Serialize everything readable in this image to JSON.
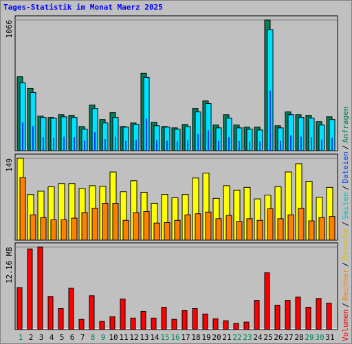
{
  "title": "Tages-Statistik im Monat Maerz 2025",
  "legend_separator": "/",
  "chart_data": [
    {
      "type": "bar",
      "categories": [
        "1",
        "2",
        "3",
        "4",
        "5",
        "6",
        "7",
        "8",
        "9",
        "10",
        "11",
        "12",
        "13",
        "14",
        "15",
        "16",
        "17",
        "18",
        "19",
        "20",
        "21",
        "22",
        "23",
        "24",
        "25",
        "26",
        "27",
        "28",
        "29",
        "30",
        "31"
      ],
      "ylim": [
        0,
        1066
      ],
      "yticks": [
        1066
      ],
      "series": [
        {
          "name": "Anfragen",
          "color": "#00805c",
          "values": [
            603,
            508,
            282,
            271,
            293,
            288,
            197,
            372,
            254,
            310,
            197,
            226,
            632,
            231,
            197,
            186,
            214,
            344,
            406,
            209,
            293,
            209,
            192,
            192,
            1066,
            203,
            316,
            293,
            288,
            237,
            276
          ]
        },
        {
          "name": "Seiten",
          "color": "#00e0ff",
          "values": [
            553,
            474,
            271,
            265,
            276,
            271,
            175,
            344,
            226,
            271,
            192,
            214,
            598,
            203,
            192,
            175,
            197,
            316,
            384,
            186,
            265,
            186,
            175,
            169,
            987,
            186,
            293,
            271,
            265,
            209,
            254
          ]
        },
        {
          "name": "Dateien",
          "color": "#0040ff",
          "values": [
            230,
            200,
            110,
            105,
            115,
            110,
            80,
            150,
            95,
            115,
            80,
            90,
            260,
            85,
            80,
            75,
            85,
            135,
            165,
            80,
            110,
            80,
            75,
            75,
            490,
            80,
            125,
            115,
            110,
            90,
            105
          ]
        }
      ]
    },
    {
      "type": "bar",
      "categories": [
        "1",
        "2",
        "3",
        "4",
        "5",
        "6",
        "7",
        "8",
        "9",
        "10",
        "11",
        "12",
        "13",
        "14",
        "15",
        "16",
        "17",
        "18",
        "19",
        "20",
        "21",
        "22",
        "23",
        "24",
        "25",
        "26",
        "27",
        "28",
        "29",
        "30",
        "31"
      ],
      "ylim": [
        0,
        149
      ],
      "yticks": [
        149
      ],
      "series": [
        {
          "name": "Besuche",
          "color": "#ffff00",
          "values": [
            149,
            83,
            89,
            97,
            103,
            103,
            94,
            99,
            98,
            124,
            88,
            108,
            87,
            67,
            83,
            77,
            83,
            113,
            122,
            76,
            99,
            91,
            96,
            75,
            82,
            97,
            124,
            139,
            107,
            78,
            96
          ]
        },
        {
          "name": "Rechner",
          "color": "#ff8000",
          "values": [
            114,
            46,
            41,
            37,
            37,
            40,
            50,
            58,
            67,
            67,
            36,
            50,
            52,
            31,
            32,
            36,
            46,
            48,
            51,
            39,
            45,
            34,
            39,
            36,
            57,
            39,
            46,
            58,
            35,
            41,
            43
          ]
        }
      ]
    },
    {
      "type": "bar",
      "categories": [
        "1",
        "2",
        "3",
        "4",
        "5",
        "6",
        "7",
        "8",
        "9",
        "10",
        "11",
        "12",
        "13",
        "14",
        "15",
        "16",
        "17",
        "18",
        "19",
        "20",
        "21",
        "22",
        "23",
        "24",
        "25",
        "26",
        "27",
        "28",
        "29",
        "30",
        "31"
      ],
      "category_colors": [
        "#00805c",
        "#000000",
        "#000000",
        "#000000",
        "#000000",
        "#000000",
        "#000000",
        "#00805c",
        "#00805c",
        "#000000",
        "#000000",
        "#000000",
        "#000000",
        "#000000",
        "#00805c",
        "#00805c",
        "#000000",
        "#000000",
        "#000000",
        "#000000",
        "#000000",
        "#00805c",
        "#00805c",
        "#000000",
        "#000000",
        "#000000",
        "#000000",
        "#000000",
        "#00805c",
        "#00805c",
        "#000000"
      ],
      "ylim": [
        0,
        12.16
      ],
      "yticks": [
        {
          "value": 12.16,
          "label": "12.16 MB"
        }
      ],
      "series": [
        {
          "name": "Volumen",
          "color": "#ff0000",
          "values": [
            6.18,
            11.86,
            12.16,
            4.88,
            3.09,
            6.08,
            1.5,
            4.98,
            1.2,
            1.89,
            4.49,
            1.69,
            2.69,
            1.69,
            3.29,
            1.5,
            2.79,
            3.09,
            2.29,
            1.59,
            1.3,
            0.9,
            1.1,
            4.29,
            8.37,
            3.59,
            4.29,
            4.78,
            3.29,
            4.58,
            3.89
          ]
        }
      ]
    }
  ]
}
